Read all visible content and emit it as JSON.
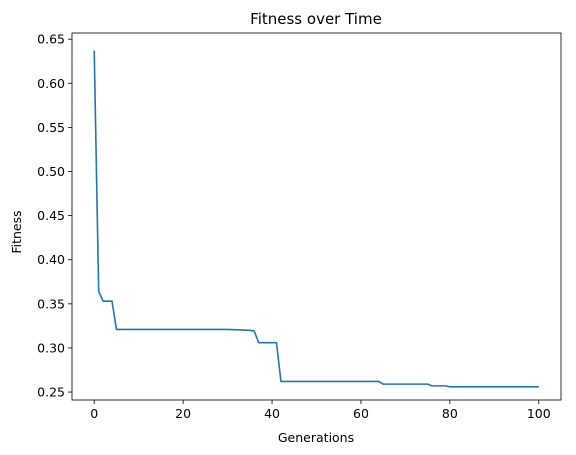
{
  "chart_data": {
    "type": "line",
    "title": "Fitness over Time",
    "xlabel": "Generations",
    "ylabel": "Fitness",
    "xlim": [
      -5,
      105
    ],
    "ylim": [
      0.241,
      0.657
    ],
    "x_ticks": [
      0,
      20,
      40,
      60,
      80,
      100
    ],
    "x_tick_labels": [
      "0",
      "20",
      "40",
      "60",
      "80",
      "100"
    ],
    "y_ticks": [
      0.25,
      0.3,
      0.35,
      0.4,
      0.45,
      0.5,
      0.55,
      0.6,
      0.65
    ],
    "y_tick_labels": [
      "0.25",
      "0.30",
      "0.35",
      "0.40",
      "0.45",
      "0.50",
      "0.55",
      "0.60",
      "0.65"
    ],
    "grid": false,
    "series": [
      {
        "color": "#1f77b4",
        "x": [
          0,
          1,
          2,
          3,
          4,
          5,
          10,
          20,
          30,
          35,
          36,
          37,
          38,
          39,
          40,
          41,
          42,
          45,
          50,
          55,
          60,
          64,
          65,
          70,
          75,
          76,
          77,
          78,
          79,
          80,
          85,
          90,
          95,
          100
        ],
        "y": [
          0.637,
          0.364,
          0.353,
          0.353,
          0.353,
          0.321,
          0.321,
          0.321,
          0.321,
          0.32,
          0.319,
          0.306,
          0.306,
          0.306,
          0.306,
          0.306,
          0.262,
          0.262,
          0.262,
          0.262,
          0.262,
          0.262,
          0.259,
          0.259,
          0.259,
          0.257,
          0.257,
          0.257,
          0.257,
          0.256,
          0.256,
          0.256,
          0.256,
          0.256
        ]
      }
    ]
  }
}
